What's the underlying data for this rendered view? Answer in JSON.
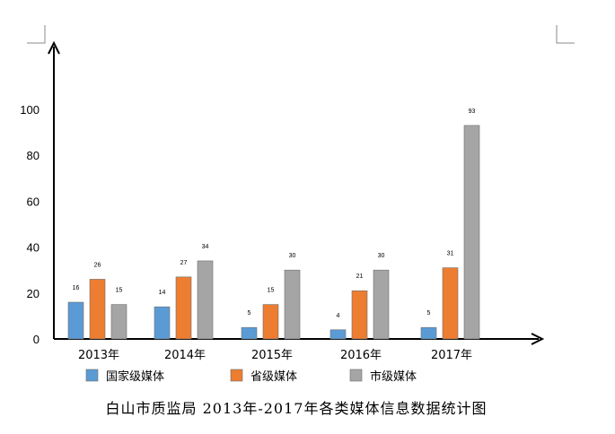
{
  "chart_data": {
    "type": "bar",
    "title": "白山市质监局 2013年-2017年各类媒体信息数据统计图",
    "categories": [
      "2013年",
      "2014年",
      "2015年",
      "2016年",
      "2017年"
    ],
    "series": [
      {
        "name": "国家级媒体",
        "values": [
          16,
          14,
          5,
          4,
          5
        ],
        "color": "#5B9BD5"
      },
      {
        "name": "省级媒体",
        "values": [
          26,
          27,
          15,
          21,
          31
        ],
        "color": "#ED7D31"
      },
      {
        "name": "市级媒体",
        "values": [
          15,
          34,
          30,
          30,
          93
        ],
        "color": "#A5A5A5"
      }
    ],
    "y_ticks": [
      "0",
      "20",
      "40",
      "60",
      "80",
      "100"
    ],
    "ylim": [
      0,
      100
    ],
    "grid": false,
    "legend_position": "bottom",
    "xlabel": "",
    "ylabel": ""
  }
}
